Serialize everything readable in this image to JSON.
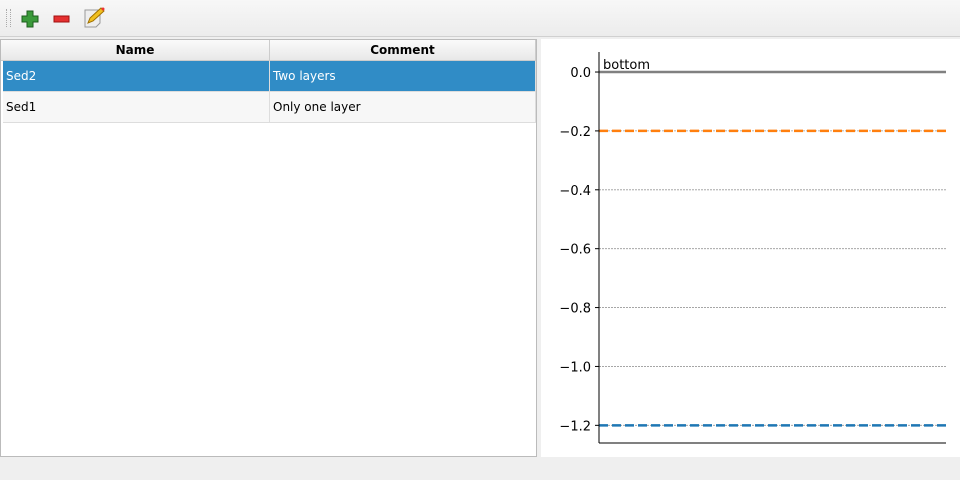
{
  "toolbar": {
    "buttons": [
      {
        "name": "add",
        "icon": "plus-icon"
      },
      {
        "name": "remove",
        "icon": "minus-icon"
      },
      {
        "name": "edit",
        "icon": "edit-icon"
      }
    ]
  },
  "table": {
    "columns": [
      "Name",
      "Comment"
    ],
    "rows": [
      {
        "name": "Sed2",
        "comment": "Two layers",
        "selected": true
      },
      {
        "name": "Sed1",
        "comment": "Only one layer",
        "selected": false
      }
    ],
    "selection_color": "#308cc6"
  },
  "chart_data": {
    "type": "line",
    "ylim": [
      -1.26,
      0.068
    ],
    "yticks": [
      "0.0",
      "−0.2",
      "−0.4",
      "−0.6",
      "−0.8",
      "−1.0",
      "−1.2"
    ],
    "ytick_values": [
      0,
      -0.2,
      -0.4,
      -0.6,
      -0.8,
      -1.0,
      -1.2
    ],
    "grid": true,
    "annotation": "bottom",
    "lines": [
      {
        "y": 0,
        "color": "#808080",
        "style": "solid"
      },
      {
        "y": -0.2,
        "color": "#ff7f0e",
        "style": "dashed"
      },
      {
        "y": -1.2,
        "color": "#1f77b4",
        "style": "dashed"
      }
    ]
  }
}
